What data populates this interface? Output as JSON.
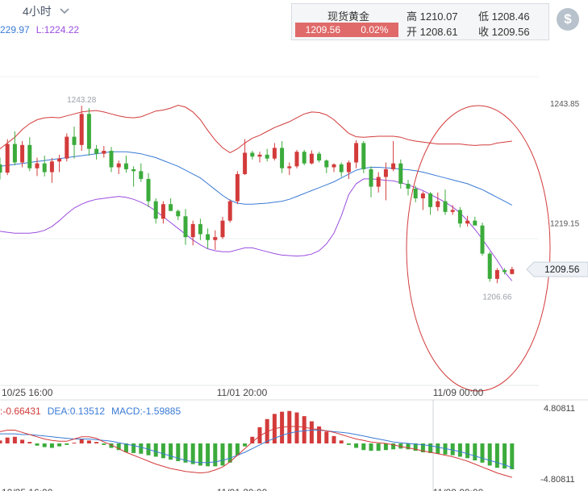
{
  "toolbar": {
    "timeframe": "4小时"
  },
  "ma_legend": {
    "middle": "229.97",
    "lower": "L:1224.22"
  },
  "quote": {
    "name": "现货黄金",
    "price": "1209.56",
    "change": "0.02%",
    "high": "高 1210.07",
    "low": "低 1208.46",
    "open": "开 1208.61",
    "close": "收 1209.56"
  },
  "colors": {
    "up": "#d33b3b",
    "down": "#3bab3b",
    "upper_band": "#d33b3b",
    "middle_band": "#3a7bd5",
    "lower_band": "#9b4de0",
    "dea": "#3a7bd5",
    "macd_line": "#d33b3b"
  },
  "chart_data": [
    {
      "type": "candlestick",
      "y_ticks": [
        "1243.85",
        "1219.15"
      ],
      "ylim": [
        1198.6,
        1249.3
      ],
      "x_ticks": [
        "10/25 16:00",
        "11/01 20:00",
        "11/09 00:00"
      ],
      "max_label": "1243.28",
      "min_label": "1206.66",
      "last_price": "1209.56",
      "candles": [
        [
          1231.2,
          1232.6,
          1228.1,
          1229.5
        ],
        [
          1229.5,
          1236.4,
          1229.0,
          1235.4
        ],
        [
          1235.4,
          1238.0,
          1231.0,
          1231.6
        ],
        [
          1231.6,
          1236.0,
          1230.6,
          1235.2
        ],
        [
          1235.2,
          1236.8,
          1229.8,
          1230.4
        ],
        [
          1230.4,
          1232.6,
          1228.8,
          1231.4
        ],
        [
          1231.4,
          1233.0,
          1228.7,
          1229.6
        ],
        [
          1229.6,
          1232.5,
          1227.4,
          1231.8
        ],
        [
          1231.8,
          1233.2,
          1229.6,
          1232.4
        ],
        [
          1232.4,
          1237.6,
          1231.8,
          1236.9
        ],
        [
          1236.9,
          1239.0,
          1232.4,
          1235.2
        ],
        [
          1235.2,
          1243.3,
          1234.0,
          1241.6
        ],
        [
          1241.6,
          1242.8,
          1233.0,
          1234.4
        ],
        [
          1234.4,
          1235.2,
          1232.2,
          1233.4
        ],
        [
          1233.4,
          1235.0,
          1232.6,
          1234.0
        ],
        [
          1234.0,
          1234.8,
          1229.6,
          1230.6
        ],
        [
          1230.6,
          1232.0,
          1229.2,
          1231.4
        ],
        [
          1231.4,
          1233.0,
          1229.5,
          1230.2
        ],
        [
          1230.2,
          1230.8,
          1226.6,
          1229.8
        ],
        [
          1229.8,
          1231.4,
          1227.6,
          1228.2
        ],
        [
          1228.2,
          1229.4,
          1222.4,
          1223.6
        ],
        [
          1223.6,
          1224.2,
          1219.0,
          1220.0
        ],
        [
          1220.0,
          1223.6,
          1219.0,
          1223.0
        ],
        [
          1223.0,
          1224.2,
          1221.6,
          1221.6
        ],
        [
          1221.6,
          1221.9,
          1219.7,
          1220.5
        ],
        [
          1220.5,
          1222.0,
          1214.6,
          1216.2
        ],
        [
          1216.2,
          1219.6,
          1214.5,
          1218.9
        ],
        [
          1218.9,
          1220.0,
          1215.6,
          1216.8
        ],
        [
          1216.8,
          1218.0,
          1213.8,
          1215.6
        ],
        [
          1215.6,
          1217.6,
          1213.6,
          1216.2
        ],
        [
          1216.2,
          1220.4,
          1215.8,
          1219.6
        ],
        [
          1219.6,
          1224.0,
          1219.2,
          1223.6
        ],
        [
          1223.6,
          1229.8,
          1223.0,
          1229.2
        ],
        [
          1229.2,
          1236.4,
          1229.0,
          1233.6
        ],
        [
          1233.6,
          1234.0,
          1232.2,
          1232.8
        ],
        [
          1232.8,
          1233.8,
          1231.6,
          1233.2
        ],
        [
          1233.2,
          1234.4,
          1231.8,
          1232.4
        ],
        [
          1232.4,
          1235.6,
          1232.0,
          1234.6
        ],
        [
          1234.6,
          1236.0,
          1229.4,
          1230.4
        ],
        [
          1230.4,
          1231.6,
          1229.0,
          1230.8
        ],
        [
          1230.8,
          1234.2,
          1230.4,
          1233.8
        ],
        [
          1233.8,
          1234.2,
          1231.0,
          1231.4
        ],
        [
          1231.4,
          1234.1,
          1231.2,
          1233.4
        ],
        [
          1233.4,
          1233.8,
          1231.6,
          1232.0
        ],
        [
          1232.0,
          1232.2,
          1229.4,
          1230.6
        ],
        [
          1230.6,
          1231.4,
          1229.6,
          1231.2
        ],
        [
          1231.2,
          1231.6,
          1228.6,
          1229.6
        ],
        [
          1229.6,
          1232.0,
          1228.2,
          1231.6
        ],
        [
          1231.6,
          1236.2,
          1230.4,
          1235.6
        ],
        [
          1235.6,
          1236.0,
          1229.4,
          1230.2
        ],
        [
          1230.2,
          1230.8,
          1224.4,
          1226.6
        ],
        [
          1226.6,
          1229.6,
          1225.4,
          1228.6
        ],
        [
          1228.6,
          1231.6,
          1223.8,
          1230.2
        ],
        [
          1230.2,
          1236.0,
          1229.8,
          1231.4
        ],
        [
          1231.4,
          1232.2,
          1226.2,
          1227.2
        ],
        [
          1227.2,
          1228.0,
          1224.8,
          1226.2
        ],
        [
          1226.2,
          1226.8,
          1223.4,
          1224.2
        ],
        [
          1224.2,
          1225.6,
          1221.8,
          1225.2
        ],
        [
          1225.2,
          1225.5,
          1220.8,
          1222.4
        ],
        [
          1222.4,
          1225.4,
          1221.6,
          1223.6
        ],
        [
          1223.6,
          1226.0,
          1220.8,
          1221.4
        ],
        [
          1221.4,
          1222.8,
          1220.8,
          1221.8
        ],
        [
          1221.8,
          1222.4,
          1218.2,
          1219.0
        ],
        [
          1219.0,
          1220.6,
          1218.4,
          1219.6
        ],
        [
          1219.6,
          1220.4,
          1218.8,
          1218.6
        ],
        [
          1218.6,
          1219.2,
          1212.4,
          1212.8
        ],
        [
          1212.8,
          1213.2,
          1207.0,
          1207.6
        ],
        [
          1207.6,
          1209.8,
          1206.7,
          1209.4
        ],
        [
          1209.4,
          1209.8,
          1208.5,
          1209.0
        ],
        [
          1208.6,
          1210.1,
          1208.5,
          1209.6
        ]
      ],
      "bollinger": {
        "upper": [
          1234.4,
          1235.6,
          1236.8,
          1238.4,
          1239.6,
          1240.4,
          1240.8,
          1240.9,
          1240.8,
          1241.2,
          1241.6,
          1242.0,
          1242.2,
          1242.3,
          1242.0,
          1241.6,
          1241.2,
          1240.9,
          1240.8,
          1241.0,
          1241.6,
          1242.2,
          1242.4,
          1242.8,
          1243.4,
          1243.0,
          1242.0,
          1240.4,
          1238.2,
          1236.2,
          1234.6,
          1233.6,
          1234.4,
          1235.6,
          1236.6,
          1237.2,
          1238.0,
          1238.8,
          1239.4,
          1240.0,
          1240.8,
          1241.6,
          1242.0,
          1241.9,
          1241.4,
          1240.4,
          1239.0,
          1237.6,
          1236.9,
          1236.8,
          1236.9,
          1237.0,
          1237.0,
          1237.0,
          1236.8,
          1236.3,
          1236.0,
          1235.8,
          1235.6,
          1235.4,
          1235.4,
          1235.4,
          1235.4,
          1235.2,
          1235.1,
          1235.2,
          1235.2,
          1235.6,
          1235.8,
          1236.0
        ],
        "middle": [
          1230.8,
          1231.0,
          1231.2,
          1231.4,
          1231.6,
          1231.8,
          1232.0,
          1232.2,
          1232.4,
          1232.6,
          1232.8,
          1233.0,
          1233.2,
          1233.4,
          1233.6,
          1233.8,
          1233.8,
          1233.8,
          1233.6,
          1233.4,
          1233.0,
          1232.6,
          1232.0,
          1231.4,
          1230.8,
          1230.0,
          1229.2,
          1228.4,
          1227.2,
          1226.0,
          1224.8,
          1223.8,
          1223.2,
          1223.0,
          1223.0,
          1223.1,
          1223.2,
          1223.4,
          1223.6,
          1224.0,
          1224.6,
          1225.2,
          1225.8,
          1226.4,
          1227.0,
          1227.6,
          1228.4,
          1229.2,
          1230.0,
          1230.4,
          1230.6,
          1230.6,
          1230.5,
          1230.4,
          1230.2,
          1230.1,
          1229.9,
          1229.6,
          1229.2,
          1228.8,
          1228.4,
          1228.0,
          1227.6,
          1227.2,
          1226.6,
          1226.0,
          1225.2,
          1224.4,
          1223.6,
          1222.8
        ],
        "lower": [
          1217.4,
          1217.2,
          1217.0,
          1217.0,
          1217.0,
          1217.2,
          1217.6,
          1218.4,
          1219.6,
          1221.0,
          1222.2,
          1223.0,
          1223.6,
          1224.0,
          1224.2,
          1224.4,
          1224.6,
          1224.4,
          1224.0,
          1223.4,
          1222.6,
          1221.6,
          1220.4,
          1219.2,
          1218.0,
          1216.8,
          1215.6,
          1214.6,
          1213.8,
          1213.4,
          1213.2,
          1213.2,
          1213.6,
          1214.0,
          1214.0,
          1213.6,
          1213.2,
          1212.8,
          1212.5,
          1212.4,
          1212.3,
          1212.4,
          1212.7,
          1213.4,
          1214.8,
          1217.0,
          1220.6,
          1225.0,
          1227.2,
          1228.2,
          1228.2,
          1228.1,
          1227.9,
          1227.8,
          1227.4,
          1227.0,
          1226.4,
          1225.8,
          1225.0,
          1224.2,
          1223.4,
          1222.4,
          1221.2,
          1219.6,
          1217.8,
          1215.8,
          1213.6,
          1211.4,
          1209.0,
          1207.2
        ]
      },
      "annotation": "red ellipse around the most recent decline"
    },
    {
      "type": "macd",
      "legend": {
        "diff": ":-0.66431",
        "dea": "DEA:0.13512",
        "macd": "MACD:-1.59885"
      },
      "y_ticks": [
        "4.80811",
        "-4.80811"
      ],
      "ylim": [
        -4.80811,
        4.80811
      ],
      "histogram": [
        0.4,
        0.8,
        0.9,
        0.5,
        0.2,
        -0.3,
        -0.5,
        -0.6,
        -0.4,
        -0.2,
        0.1,
        0.6,
        0.4,
        0.2,
        -0.2,
        -0.6,
        -0.9,
        -1.2,
        -1.3,
        -1.4,
        -1.6,
        -1.8,
        -2.0,
        -2.2,
        -2.4,
        -2.6,
        -2.8,
        -3.0,
        -3.1,
        -3.1,
        -3.0,
        -2.6,
        -1.6,
        -0.4,
        0.9,
        2.2,
        3.3,
        4.0,
        4.3,
        4.4,
        4.2,
        3.7,
        3.0,
        2.3,
        1.6,
        1.0,
        0.4,
        -0.2,
        -0.6,
        -0.9,
        -1.0,
        -1.0,
        -0.9,
        -0.8,
        -0.7,
        -0.8,
        -1.0,
        -1.2,
        -1.3,
        -1.4,
        -1.5,
        -1.6,
        -1.8,
        -2.0,
        -2.3,
        -2.6,
        -3.0,
        -3.3,
        -3.4,
        -3.5
      ],
      "dea_line": [
        1.3,
        1.3,
        1.3,
        1.2,
        1.2,
        1.1,
        1.0,
        0.9,
        0.8,
        0.7,
        0.6,
        0.6,
        0.6,
        0.5,
        0.4,
        0.3,
        0.1,
        -0.1,
        -0.3,
        -0.5,
        -0.8,
        -1.1,
        -1.4,
        -1.7,
        -2.0,
        -2.3,
        -2.5,
        -2.6,
        -2.6,
        -2.5,
        -2.3,
        -2.0,
        -1.6,
        -1.2,
        -0.7,
        -0.2,
        0.3,
        0.7,
        1.1,
        1.4,
        1.6,
        1.7,
        1.8,
        1.8,
        1.7,
        1.6,
        1.5,
        1.4,
        1.2,
        1.0,
        0.8,
        0.6,
        0.4,
        0.2,
        0.1,
        0.0,
        -0.1,
        -0.2,
        -0.3,
        -0.5,
        -0.7,
        -0.9,
        -1.1,
        -1.4,
        -1.7,
        -2.0,
        -2.3,
        -2.6,
        -2.9,
        -3.3
      ],
      "macd_line": [
        1.6,
        1.8,
        1.8,
        1.5,
        1.2,
        0.9,
        0.6,
        0.4,
        0.3,
        0.3,
        0.6,
        0.9,
        0.9,
        0.7,
        0.2,
        -0.2,
        -0.7,
        -1.2,
        -1.6,
        -2.0,
        -2.4,
        -2.8,
        -3.1,
        -3.4,
        -3.6,
        -3.8,
        -3.9,
        -4.0,
        -3.9,
        -3.6,
        -3.2,
        -2.5,
        -1.6,
        -0.7,
        0.2,
        1.0,
        1.6,
        2.0,
        2.2,
        2.3,
        2.3,
        2.2,
        2.0,
        1.9,
        1.7,
        1.5,
        1.2,
        0.9,
        0.6,
        0.4,
        0.2,
        0.1,
        0.0,
        -0.2,
        -0.4,
        -0.6,
        -0.8,
        -1.0,
        -1.2,
        -1.4,
        -1.6,
        -1.8,
        -2.1,
        -2.4,
        -2.8,
        -3.2,
        -3.6,
        -4.0,
        -4.3,
        -4.6
      ]
    }
  ]
}
